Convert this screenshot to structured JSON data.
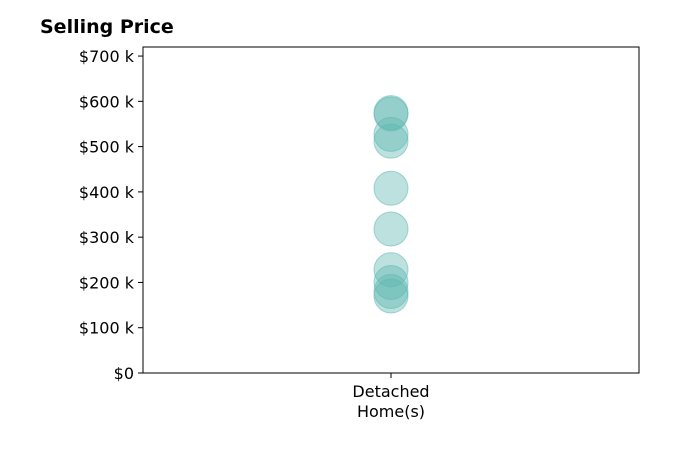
{
  "chart_data": {
    "type": "scatter",
    "title": "Selling Price",
    "xlabel": "",
    "ylabel": "",
    "categories": [
      "Detached\nHome(s)"
    ],
    "y_ticks": [
      {
        "value": 0,
        "label": "$0"
      },
      {
        "value": 100000,
        "label": "$100 k"
      },
      {
        "value": 200000,
        "label": "$200 k"
      },
      {
        "value": 300000,
        "label": "$300 k"
      },
      {
        "value": 400000,
        "label": "$400 k"
      },
      {
        "value": 500000,
        "label": "$500 k"
      },
      {
        "value": 600000,
        "label": "$600 k"
      },
      {
        "value": 700000,
        "label": "$700 k"
      }
    ],
    "ylim": [
      0,
      720000
    ],
    "grid": false,
    "marker_color": "#5fb8b0",
    "series": [
      {
        "category": "Detached\nHome(s)",
        "values": [
          575000,
          572000,
          527000,
          512000,
          408000,
          318000,
          228000,
          200000,
          180000,
          170000
        ]
      }
    ]
  }
}
